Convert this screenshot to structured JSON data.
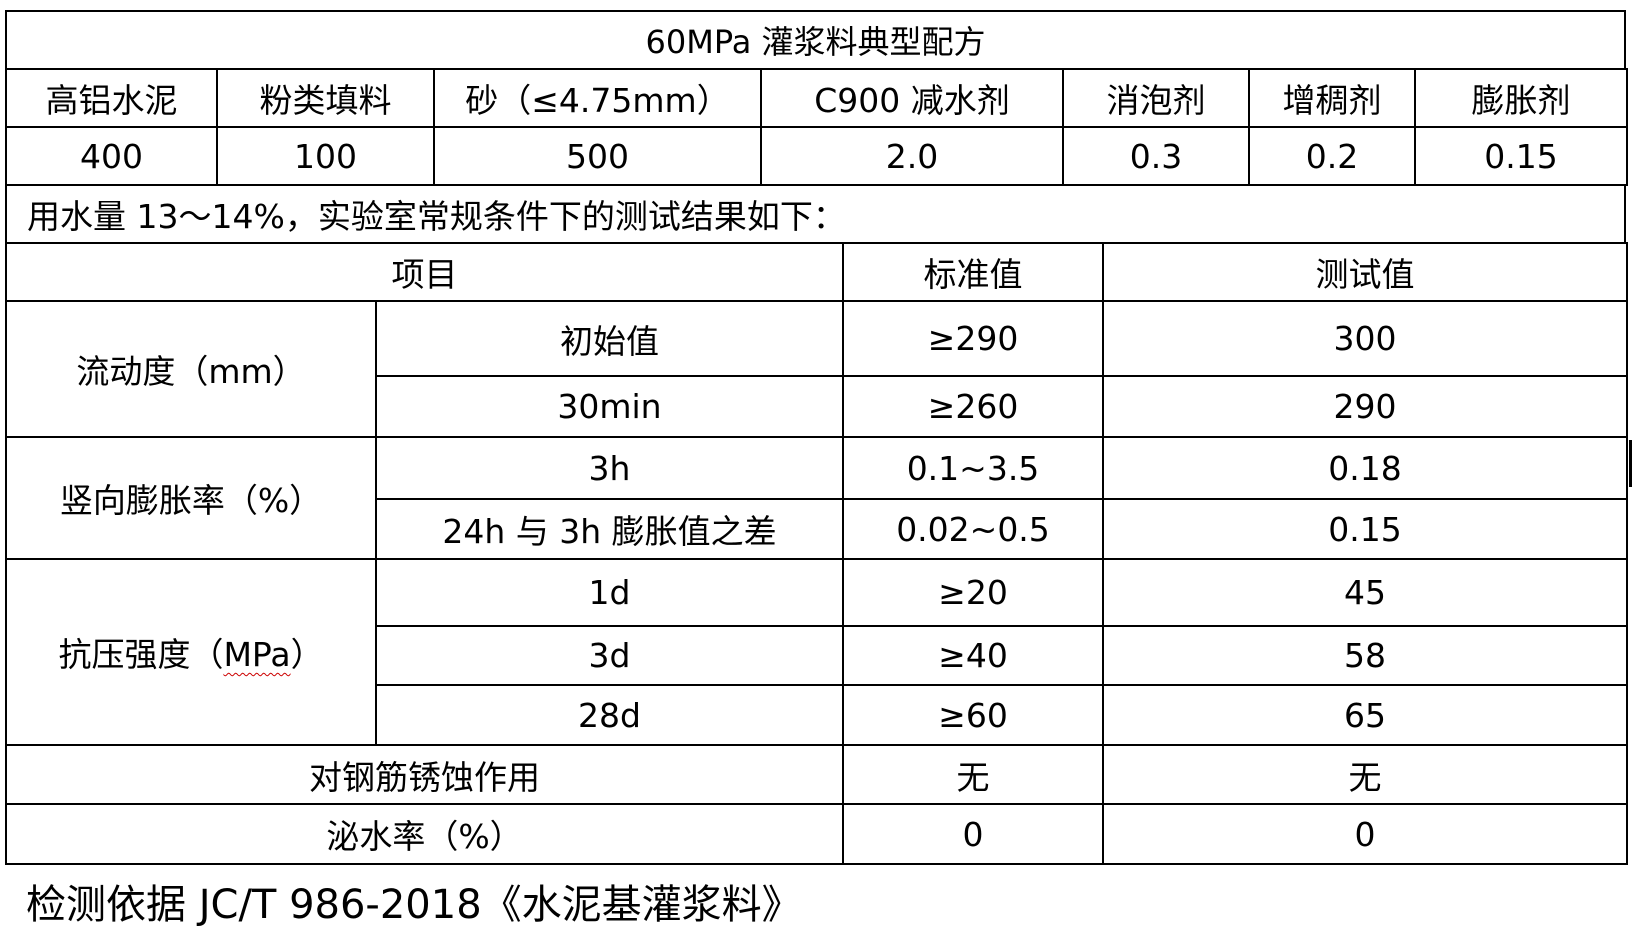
{
  "title": "60MPa 灌浆料典型配方",
  "formula": {
    "headers": [
      "高铝水泥",
      "粉类填料",
      "砂（≤4.75mm）",
      "C900 减水剂",
      "消泡剂",
      "增稠剂",
      "膨胀剂"
    ],
    "values": [
      "400",
      "100",
      "500",
      "2.0",
      "0.3",
      "0.2",
      "0.15"
    ]
  },
  "note": "用水量 13～14%，实验室常规条件下的测试结果如下：",
  "results": {
    "headers": [
      "项目",
      "标准值",
      "测试值"
    ],
    "groups": [
      {
        "name": "流动度（mm）",
        "rows": [
          {
            "item": "初始值",
            "standard": "≥290",
            "test": "300"
          },
          {
            "item": "30min",
            "standard": "≥260",
            "test": "290"
          }
        ]
      },
      {
        "name": "竖向膨胀率（%）",
        "rows": [
          {
            "item": "3h",
            "standard": "0.1~3.5",
            "test": "0.18"
          },
          {
            "item": "24h 与 3h 膨胀值之差",
            "standard": "0.02~0.5",
            "test": "0.15"
          }
        ]
      },
      {
        "name_prefix": "抗压强度（",
        "name_unit": "MPa",
        "name_suffix": "）",
        "rows": [
          {
            "item": "1d",
            "standard": "≥20",
            "test": "45"
          },
          {
            "item": "3d",
            "standard": "≥40",
            "test": "58"
          },
          {
            "item": "28d",
            "standard": "≥60",
            "test": "65"
          }
        ]
      }
    ],
    "single_rows": [
      {
        "item": "对钢筋锈蚀作用",
        "standard": "无",
        "test": "无"
      },
      {
        "item": "泌水率（%）",
        "standard": "0",
        "test": "0"
      }
    ]
  },
  "footer": "检测依据 JC/T 986-2018《水泥基灌浆料》"
}
